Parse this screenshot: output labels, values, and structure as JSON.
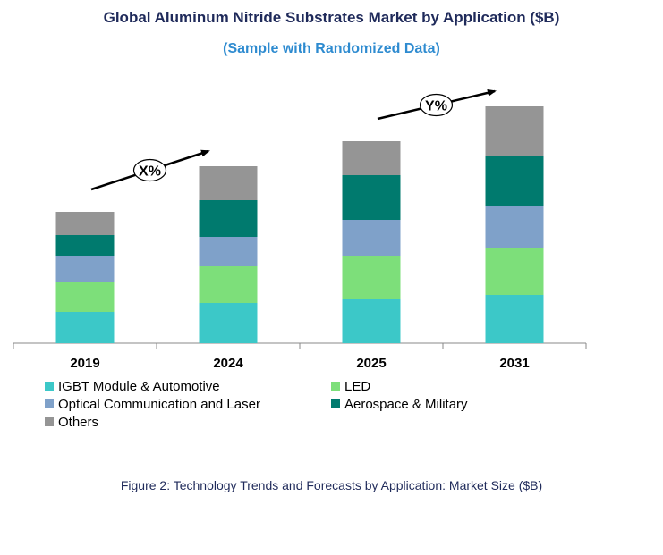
{
  "chart_data": {
    "type": "bar",
    "stacked": true,
    "title": "Global Aluminum Nitride Substrates Market by Application ($B)",
    "subtitle": "(Sample with Randomized Data)",
    "categories": [
      "2019",
      "2024",
      "2025",
      "2031"
    ],
    "series": [
      {
        "name": "IGBT Module & Automotive",
        "color": "#3cc8c8",
        "values": [
          35,
          45,
          50,
          54
        ]
      },
      {
        "name": "LED",
        "color": "#7ddf7a",
        "values": [
          34,
          41,
          47,
          52
        ]
      },
      {
        "name": "Optical Communication and Laser",
        "color": "#7fa1c9",
        "values": [
          28,
          33,
          41,
          47
        ]
      },
      {
        "name": "Aerospace & Military",
        "color": "#007a6e",
        "values": [
          24,
          41,
          50,
          56
        ]
      },
      {
        "name": "Others",
        "color": "#959595",
        "values": [
          26,
          38,
          38,
          56
        ]
      }
    ],
    "annotations": [
      {
        "text": "X%",
        "from": "2019",
        "to": "2024"
      },
      {
        "text": "Y%",
        "from": "2025",
        "to": "2031"
      }
    ],
    "ylim": [
      0,
      300
    ],
    "grid": false,
    "legend": "bottom",
    "caption": "Figure 2: Technology  Trends  and Forecasts by Application: Market Size ($B)"
  }
}
